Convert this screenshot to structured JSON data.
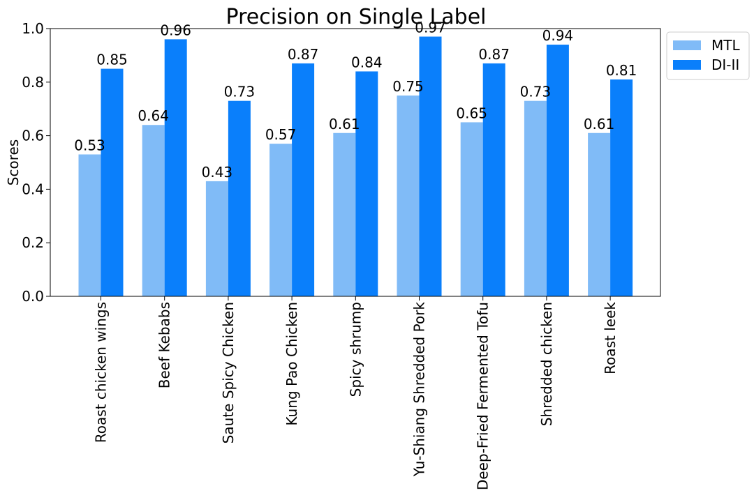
{
  "chart_data": {
    "type": "bar",
    "title": "Precision on Single Label",
    "xlabel": "",
    "ylabel": "Scores",
    "ylim": [
      0,
      1.0
    ],
    "yticks": [
      "0.0",
      "0.2",
      "0.4",
      "0.6",
      "0.8",
      "1.0"
    ],
    "grid": false,
    "legend_position": "outside-top-right",
    "categories": [
      "Roast chicken wings",
      "Beef Kebabs",
      "Saute Spicy Chicken",
      "Kung Pao Chicken",
      "Spicy shrump",
      "Yu-Shiang Shredded Pork",
      "Deep-Fried Fermented Tofu",
      "Shredded chicken",
      "Roast leek"
    ],
    "series": [
      {
        "name": "MTL",
        "color": "#80bbf7",
        "values": [
          0.53,
          0.64,
          0.43,
          0.57,
          0.61,
          0.75,
          0.65,
          0.73,
          0.61
        ],
        "labels": [
          "0.53",
          "0.64",
          "0.43",
          "0.57",
          "0.61",
          "0.75",
          "0.65",
          "0.73",
          "0.61"
        ]
      },
      {
        "name": "DI-II",
        "color": "#0a7ffb",
        "values": [
          0.85,
          0.96,
          0.73,
          0.87,
          0.84,
          0.97,
          0.87,
          0.94,
          0.81
        ],
        "labels": [
          "0.85",
          "0.96",
          "0.73",
          "0.87",
          "0.84",
          "0.97",
          "0.87",
          "0.94",
          "0.81"
        ]
      }
    ]
  }
}
